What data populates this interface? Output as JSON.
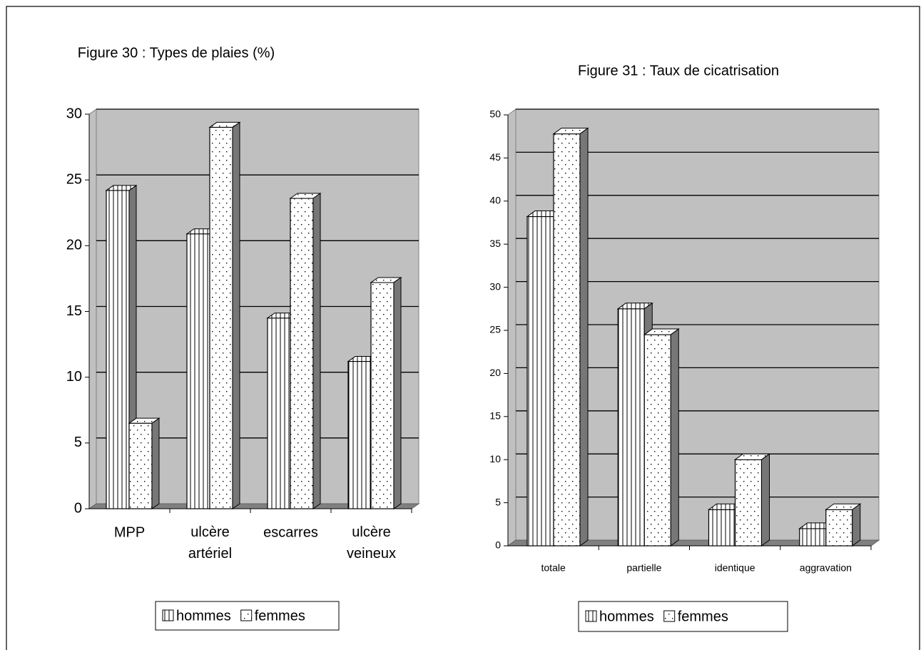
{
  "chart_data": [
    {
      "type": "bar",
      "title": "Figure 30 : Types de plaies (%)",
      "categories": [
        "MPP",
        "ulcère artériel",
        "escarres",
        "ulcère veineux"
      ],
      "series": [
        {
          "name": "hommes",
          "color": "#ffffff",
          "values": [
            24.2,
            20.9,
            14.5,
            11.2
          ]
        },
        {
          "name": "femmes",
          "color": "#ffffff",
          "values": [
            6.5,
            29,
            23.6,
            17.2
          ]
        }
      ],
      "ylim": [
        0,
        30
      ],
      "yticks": [
        0,
        5,
        10,
        15,
        20,
        25,
        30
      ],
      "grid": true,
      "legend": "bottom"
    },
    {
      "type": "bar",
      "title": "Figure 31 : Taux de cicatrisation",
      "categories": [
        "totale",
        "partielle",
        "identique",
        "aggravation"
      ],
      "series": [
        {
          "name": "hommes",
          "color": "#ffffff",
          "values": [
            38.2,
            27.5,
            4.2,
            2
          ]
        },
        {
          "name": "femmes",
          "color": "#ffffff",
          "values": [
            47.8,
            24.5,
            10,
            4.2
          ]
        }
      ],
      "ylim": [
        0,
        50
      ],
      "yticks": [
        0,
        5,
        10,
        15,
        20,
        25,
        30,
        35,
        40,
        45,
        50
      ],
      "grid": true,
      "legend": "bottom"
    }
  ]
}
